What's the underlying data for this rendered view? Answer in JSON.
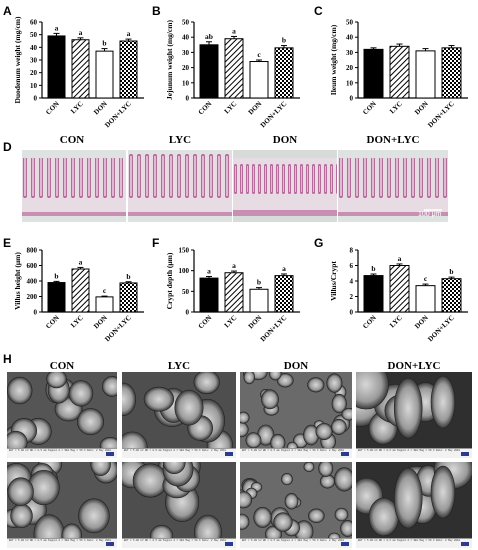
{
  "figure": {
    "panels": {
      "A": "A",
      "B": "B",
      "C": "C",
      "D": "D",
      "E": "E",
      "F": "F",
      "G": "G",
      "H": "H"
    },
    "groups": [
      "CON",
      "LYC",
      "DON",
      "DON+LYC"
    ],
    "histology_scale_label": "100 μm",
    "sem_info_text": "EHT = 5.00 kV  WD = 8.5 mm  Signal A = SE2  Mag = 50 X  Date: 2 May 2018"
  },
  "chart_data": [
    {
      "id": "A",
      "type": "bar",
      "categories": [
        "CON",
        "LYC",
        "DON",
        "DON+LYC"
      ],
      "values": [
        49,
        46,
        37,
        45
      ],
      "errors": [
        2,
        1.5,
        2,
        1.5
      ],
      "letters": [
        "a",
        "a",
        "b",
        "a"
      ],
      "ylabel": "Duodenum weight (mg/cm)",
      "ylim": [
        0,
        60
      ],
      "yticks": [
        0,
        10,
        20,
        30,
        40,
        50,
        60
      ]
    },
    {
      "id": "B",
      "type": "bar",
      "categories": [
        "CON",
        "LYC",
        "DON",
        "DON+LYC"
      ],
      "values": [
        35,
        39,
        24,
        33
      ],
      "errors": [
        2,
        1.5,
        1,
        1.5
      ],
      "letters": [
        "ab",
        "a",
        "c",
        "b"
      ],
      "ylabel": "Jejunum weight (mg/cm)",
      "ylim": [
        0,
        50
      ],
      "yticks": [
        0,
        10,
        20,
        30,
        40,
        50
      ]
    },
    {
      "id": "C",
      "type": "bar",
      "categories": [
        "CON",
        "LYC",
        "DON",
        "DON+LYC"
      ],
      "values": [
        32,
        34,
        31,
        33
      ],
      "errors": [
        1,
        1.5,
        1.5,
        1.5
      ],
      "letters": [
        "",
        "",
        "",
        ""
      ],
      "ylabel": "Ileum weight (mg/cm)",
      "ylim": [
        0,
        50
      ],
      "yticks": [
        0,
        10,
        20,
        30,
        40,
        50
      ]
    },
    {
      "id": "E",
      "type": "bar",
      "categories": [
        "CON",
        "LYC",
        "DON",
        "DON+LYC"
      ],
      "values": [
        380,
        555,
        195,
        375
      ],
      "errors": [
        15,
        20,
        10,
        15
      ],
      "letters": [
        "b",
        "a",
        "c",
        "b"
      ],
      "ylabel": "Villus height (μm)",
      "ylim": [
        0,
        800
      ],
      "yticks": [
        0,
        200,
        400,
        600,
        800
      ]
    },
    {
      "id": "F",
      "type": "bar",
      "categories": [
        "CON",
        "LYC",
        "DON",
        "DON+LYC"
      ],
      "values": [
        82,
        95,
        55,
        88
      ],
      "errors": [
        4,
        4,
        4,
        4
      ],
      "letters": [
        "a",
        "a",
        "b",
        "a"
      ],
      "ylabel": "Crypt depth (μm)",
      "ylim": [
        0,
        150
      ],
      "yticks": [
        0,
        50,
        100,
        150
      ]
    },
    {
      "id": "G",
      "type": "bar",
      "categories": [
        "CON",
        "LYC",
        "DON",
        "DON+LYC"
      ],
      "values": [
        4.7,
        6.0,
        3.4,
        4.3
      ],
      "errors": [
        0.2,
        0.2,
        0.2,
        0.2
      ],
      "letters": [
        "b",
        "a",
        "c",
        "b"
      ],
      "ylabel": "Villus/Crypt",
      "ylim": [
        0,
        8
      ],
      "yticks": [
        0,
        2,
        4,
        6,
        8
      ]
    }
  ]
}
